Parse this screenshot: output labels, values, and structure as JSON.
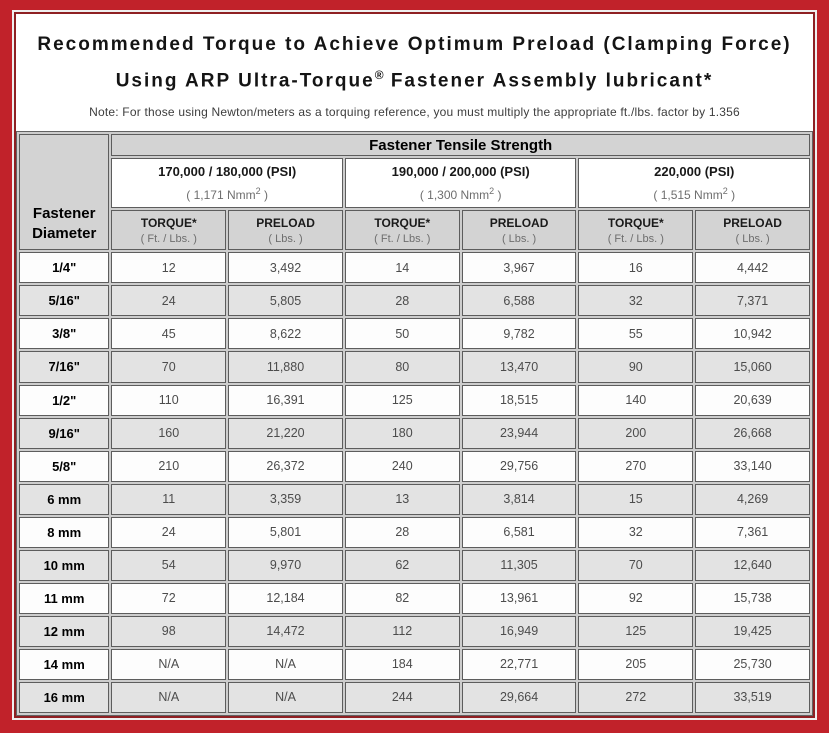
{
  "title": {
    "line1": "Recommended Torque to Achieve Optimum Preload (Clamping Force)",
    "line2_before_reg": "Using ARP Ultra-Torque",
    "registered_mark": "®",
    "line2_after_reg": " Fastener Assembly lubricant*",
    "note": "Note: For those using Newton/meters as a torquing reference, you must multiply the appropriate ft./lbs. factor by 1.356"
  },
  "table": {
    "tensile_strength_header": "Fastener Tensile Strength",
    "corner": {
      "line1": "Fastener",
      "line2": "Diameter"
    },
    "groups": [
      {
        "psi": "170,000 / 180,000 (PSI)",
        "nmm_open": "( 1,171 Nmm",
        "nmm_sup": "2",
        "nmm_close": " )"
      },
      {
        "psi": "190,000 / 200,000 (PSI)",
        "nmm_open": "( 1,300 Nmm",
        "nmm_sup": "2",
        "nmm_close": " )"
      },
      {
        "psi": "220,000 (PSI)",
        "nmm_open": "( 1,515 Nmm",
        "nmm_sup": "2",
        "nmm_close": " )"
      }
    ],
    "subheader": {
      "torque_label": "TORQUE*",
      "torque_unit": "( Ft. / Lbs. )",
      "preload_label": "PRELOAD",
      "preload_unit": "( Lbs. )"
    },
    "rows": [
      {
        "diameter": "1/4\"",
        "values": [
          "12",
          "3,492",
          "14",
          "3,967",
          "16",
          "4,442"
        ]
      },
      {
        "diameter": "5/16\"",
        "values": [
          "24",
          "5,805",
          "28",
          "6,588",
          "32",
          "7,371"
        ]
      },
      {
        "diameter": "3/8\"",
        "values": [
          "45",
          "8,622",
          "50",
          "9,782",
          "55",
          "10,942"
        ]
      },
      {
        "diameter": "7/16\"",
        "values": [
          "70",
          "11,880",
          "80",
          "13,470",
          "90",
          "15,060"
        ]
      },
      {
        "diameter": "1/2\"",
        "values": [
          "110",
          "16,391",
          "125",
          "18,515",
          "140",
          "20,639"
        ]
      },
      {
        "diameter": "9/16\"",
        "values": [
          "160",
          "21,220",
          "180",
          "23,944",
          "200",
          "26,668"
        ]
      },
      {
        "diameter": "5/8\"",
        "values": [
          "210",
          "26,372",
          "240",
          "29,756",
          "270",
          "33,140"
        ]
      },
      {
        "diameter": "6 mm",
        "values": [
          "11",
          "3,359",
          "13",
          "3,814",
          "15",
          "4,269"
        ]
      },
      {
        "diameter": "8 mm",
        "values": [
          "24",
          "5,801",
          "28",
          "6,581",
          "32",
          "7,361"
        ]
      },
      {
        "diameter": "10 mm",
        "values": [
          "54",
          "9,970",
          "62",
          "11,305",
          "70",
          "12,640"
        ]
      },
      {
        "diameter": "11 mm",
        "values": [
          "72",
          "12,184",
          "82",
          "13,961",
          "92",
          "15,738"
        ]
      },
      {
        "diameter": "12 mm",
        "values": [
          "98",
          "14,472",
          "112",
          "16,949",
          "125",
          "19,425"
        ]
      },
      {
        "diameter": "14 mm",
        "values": [
          "N/A",
          "N/A",
          "184",
          "22,771",
          "205",
          "25,730"
        ]
      },
      {
        "diameter": "16 mm",
        "values": [
          "N/A",
          "N/A",
          "244",
          "29,664",
          "272",
          "33,519"
        ]
      }
    ]
  },
  "colors": {
    "frame_red": "#c1222a",
    "panel_border_maroon": "#8e2023",
    "pinstripe_white": "#efefef",
    "header_gray": "#d3d3d3",
    "stripe_gray": "#e3e3e3",
    "cell_border_gray": "#5d5d5d",
    "gap_gray": "#cdcdcd",
    "text_black": "#141414",
    "text_muted_gray": "#6e6e6e",
    "value_gray": "#4c4c4c"
  }
}
